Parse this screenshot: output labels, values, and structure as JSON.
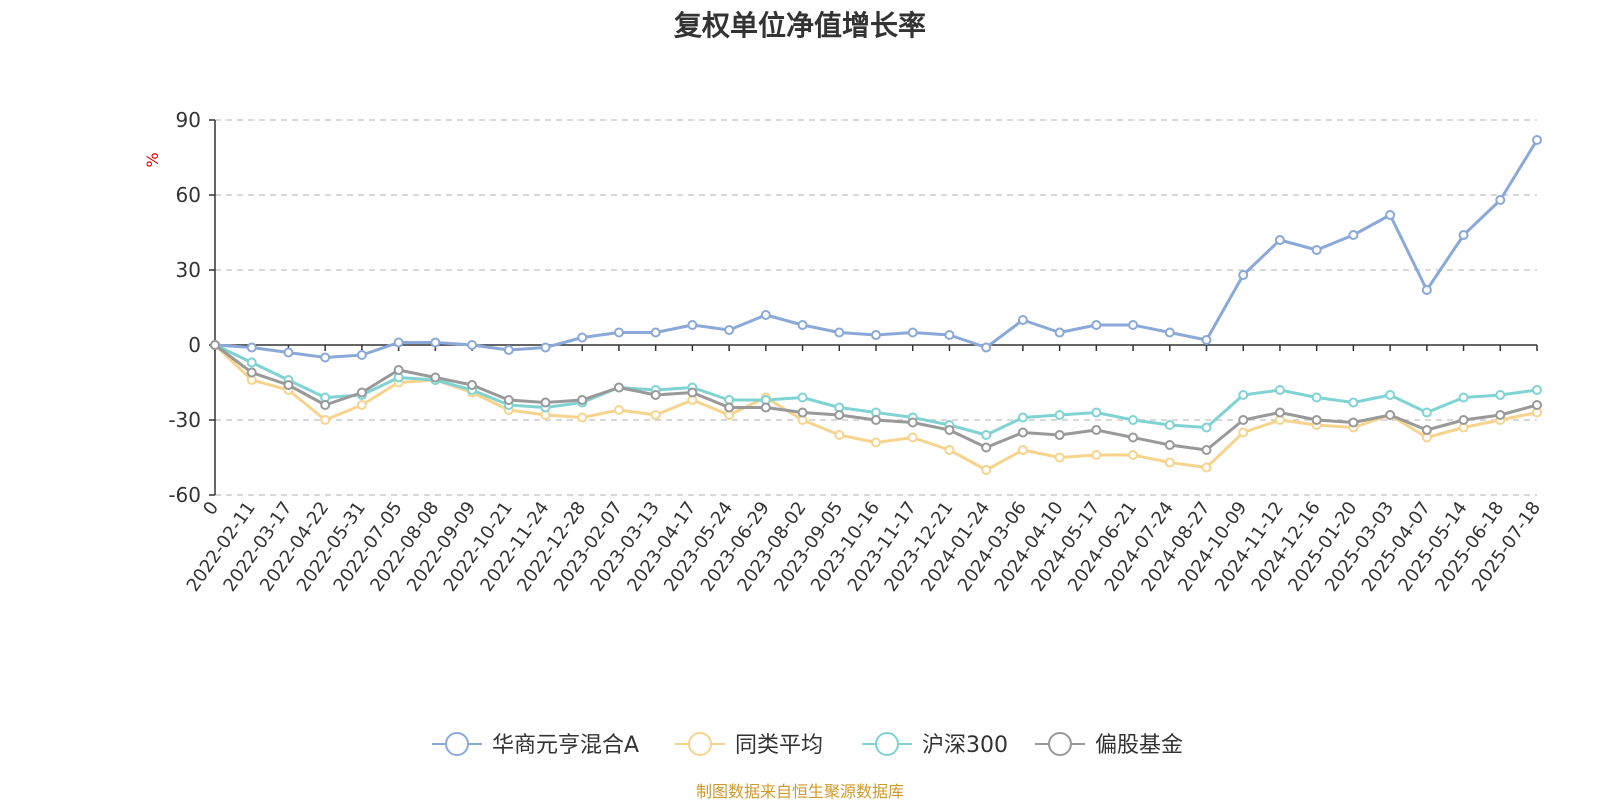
{
  "chart_data": {
    "type": "line",
    "title": "复权单位净值增长率",
    "ylabel": "%",
    "ylim": [
      -60,
      90
    ],
    "yticks": [
      90,
      60,
      30,
      0,
      -30,
      -60
    ],
    "grid": true,
    "legend_position": "bottom",
    "x": [
      "0",
      "2022-02-11",
      "2022-03-17",
      "2022-04-22",
      "2022-05-31",
      "2022-07-05",
      "2022-08-08",
      "2022-09-09",
      "2022-10-21",
      "2022-11-24",
      "2022-12-28",
      "2023-02-07",
      "2023-03-13",
      "2023-04-17",
      "2023-05-24",
      "2023-06-29",
      "2023-08-02",
      "2023-09-05",
      "2023-10-16",
      "2023-11-17",
      "2023-12-21",
      "2024-01-24",
      "2024-03-06",
      "2024-04-10",
      "2024-05-17",
      "2024-06-21",
      "2024-07-24",
      "2024-08-27",
      "2024-10-09",
      "2024-11-12",
      "2024-12-16",
      "2025-01-20",
      "2025-03-03",
      "2025-04-07",
      "2025-05-14",
      "2025-06-18",
      "2025-07-18"
    ],
    "series": [
      {
        "name": "华商元亨混合A",
        "color": "#8aa9d8",
        "values": [
          0,
          -1,
          -3,
          -5,
          -4,
          1,
          1,
          0,
          -2,
          -1,
          3,
          5,
          5,
          8,
          6,
          12,
          8,
          5,
          4,
          5,
          4,
          -1,
          10,
          5,
          8,
          8,
          5,
          2,
          28,
          42,
          38,
          44,
          52,
          22,
          44,
          58,
          82
        ]
      },
      {
        "name": "同类平均",
        "color": "#f7d48e",
        "values": [
          0,
          -14,
          -18,
          -30,
          -24,
          -15,
          -14,
          -19,
          -26,
          -28,
          -29,
          -26,
          -28,
          -22,
          -28,
          -21,
          -30,
          -36,
          -39,
          -37,
          -42,
          -50,
          -42,
          -45,
          -44,
          -44,
          -47,
          -49,
          -35,
          -30,
          -32,
          -33,
          -28,
          -37,
          -33,
          -30,
          -27
        ]
      },
      {
        "name": "沪深300",
        "color": "#7fd3d3",
        "values": [
          0,
          -7,
          -14,
          -21,
          -20,
          -13,
          -14,
          -18,
          -24,
          -25,
          -23,
          -17,
          -18,
          -17,
          -22,
          -22,
          -21,
          -25,
          -27,
          -29,
          -32,
          -36,
          -29,
          -28,
          -27,
          -30,
          -32,
          -33,
          -20,
          -18,
          -21,
          -23,
          -20,
          -27,
          -21,
          -20,
          -18
        ]
      },
      {
        "name": "偏股基金",
        "color": "#999999",
        "values": [
          0,
          -11,
          -16,
          -24,
          -19,
          -10,
          -13,
          -16,
          -22,
          -23,
          -22,
          -17,
          -20,
          -19,
          -25,
          -25,
          -27,
          -28,
          -30,
          -31,
          -34,
          -41,
          -35,
          -36,
          -34,
          -37,
          -40,
          -42,
          -30,
          -27,
          -30,
          -31,
          -28,
          -34,
          -30,
          -28,
          -24
        ]
      }
    ]
  },
  "source_text": "制图数据来自恒生聚源数据库"
}
